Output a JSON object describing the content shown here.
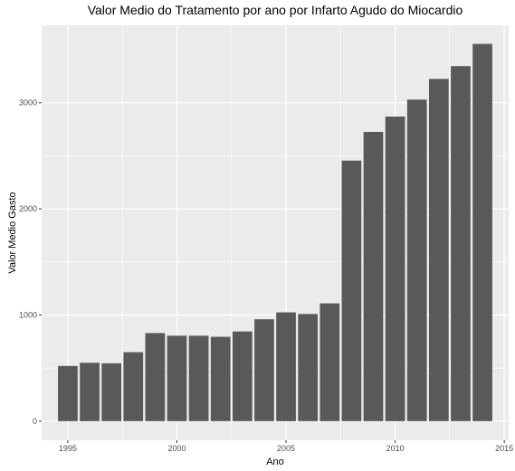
{
  "chart_data": {
    "type": "bar",
    "title": "Valor Medio do Tratamento por ano por Infarto Agudo do Miocardio",
    "xlabel": "Ano",
    "ylabel": "Valor Medio Gasto",
    "x": [
      1995,
      1996,
      1997,
      1998,
      1999,
      2000,
      2001,
      2002,
      2003,
      2004,
      2005,
      2006,
      2007,
      2008,
      2009,
      2010,
      2011,
      2012,
      2013,
      2014
    ],
    "values": [
      520,
      550,
      545,
      650,
      830,
      805,
      805,
      795,
      845,
      960,
      1025,
      1010,
      1110,
      2455,
      2725,
      2870,
      3030,
      3225,
      3345,
      3555
    ],
    "xlim": [
      1993.8,
      2015.2
    ],
    "ylim": [
      -180,
      3730
    ],
    "x_ticks": [
      1995,
      2000,
      2005,
      2010,
      2015
    ],
    "y_ticks": [
      0,
      1000,
      2000,
      3000
    ],
    "bar_color": "#595959",
    "panel_background": "#ebebeb",
    "grid_color": "#ffffff",
    "grid": true,
    "legend": "none"
  }
}
